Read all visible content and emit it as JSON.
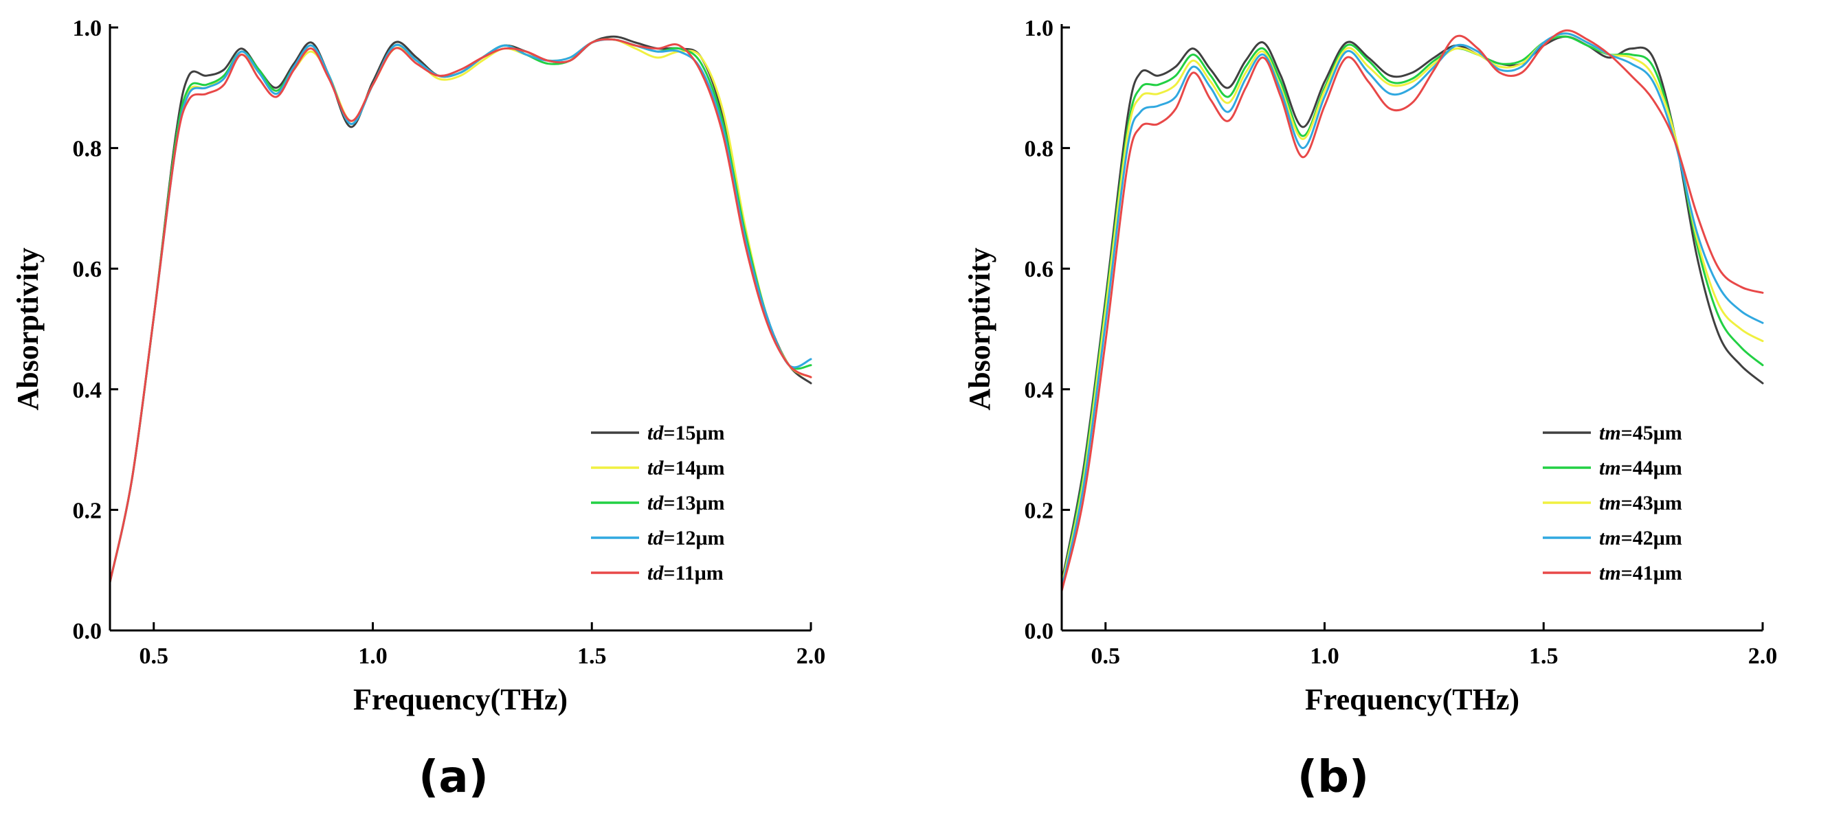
{
  "chart_data": [
    {
      "type": "line",
      "panel_label": "(a)",
      "xlabel": "Frequency(THz)",
      "ylabel": "Absorptivity",
      "xlim": [
        0.4,
        2.0
      ],
      "ylim": [
        0.0,
        1.0
      ],
      "xticks": [
        0.5,
        1.0,
        1.5,
        2.0
      ],
      "yticks": [
        0.0,
        0.2,
        0.4,
        0.6,
        0.8,
        1.0
      ],
      "xtick_labels": [
        "0.5",
        "1.0",
        "1.5",
        "2.0"
      ],
      "ytick_labels": [
        "0.0",
        "0.2",
        "0.4",
        "0.6",
        "0.8",
        "1.0"
      ],
      "legend_position": "bottom-right",
      "x": [
        0.4,
        0.45,
        0.5,
        0.55,
        0.58,
        0.62,
        0.66,
        0.7,
        0.74,
        0.78,
        0.82,
        0.86,
        0.9,
        0.95,
        1.0,
        1.05,
        1.1,
        1.15,
        1.2,
        1.25,
        1.3,
        1.35,
        1.4,
        1.45,
        1.5,
        1.55,
        1.6,
        1.65,
        1.7,
        1.75,
        1.8,
        1.85,
        1.9,
        1.95,
        2.0
      ],
      "series": [
        {
          "prefix": "td",
          "suffix": "=15μm",
          "color": "#404040",
          "values": [
            0.08,
            0.25,
            0.52,
            0.82,
            0.92,
            0.92,
            0.93,
            0.965,
            0.93,
            0.9,
            0.94,
            0.975,
            0.92,
            0.835,
            0.91,
            0.975,
            0.95,
            0.92,
            0.925,
            0.95,
            0.97,
            0.96,
            0.945,
            0.945,
            0.975,
            0.985,
            0.975,
            0.965,
            0.965,
            0.95,
            0.85,
            0.66,
            0.52,
            0.44,
            0.41
          ]
        },
        {
          "prefix": "td",
          "suffix": "=14μm",
          "color": "#f0f040",
          "values": [
            0.08,
            0.25,
            0.52,
            0.81,
            0.895,
            0.9,
            0.92,
            0.955,
            0.925,
            0.895,
            0.93,
            0.96,
            0.92,
            0.845,
            0.905,
            0.965,
            0.945,
            0.915,
            0.92,
            0.945,
            0.965,
            0.955,
            0.945,
            0.95,
            0.975,
            0.98,
            0.965,
            0.95,
            0.96,
            0.95,
            0.86,
            0.67,
            0.52,
            0.44,
            0.42
          ]
        },
        {
          "prefix": "td",
          "suffix": "=13μm",
          "color": "#22d044",
          "values": [
            0.08,
            0.25,
            0.52,
            0.81,
            0.9,
            0.905,
            0.92,
            0.96,
            0.93,
            0.895,
            0.935,
            0.97,
            0.92,
            0.84,
            0.905,
            0.97,
            0.945,
            0.92,
            0.925,
            0.95,
            0.97,
            0.955,
            0.94,
            0.945,
            0.975,
            0.98,
            0.97,
            0.96,
            0.965,
            0.94,
            0.84,
            0.66,
            0.52,
            0.44,
            0.44
          ]
        },
        {
          "prefix": "td",
          "suffix": "=12μm",
          "color": "#30a8e0",
          "values": [
            0.08,
            0.25,
            0.52,
            0.8,
            0.89,
            0.9,
            0.915,
            0.96,
            0.925,
            0.89,
            0.935,
            0.97,
            0.92,
            0.84,
            0.905,
            0.97,
            0.945,
            0.92,
            0.925,
            0.95,
            0.97,
            0.955,
            0.945,
            0.95,
            0.975,
            0.98,
            0.97,
            0.96,
            0.96,
            0.93,
            0.83,
            0.65,
            0.52,
            0.44,
            0.45
          ]
        },
        {
          "prefix": "td",
          "suffix": "=11μm",
          "color": "#e84848",
          "values": [
            0.08,
            0.25,
            0.52,
            0.8,
            0.88,
            0.89,
            0.905,
            0.955,
            0.915,
            0.885,
            0.93,
            0.965,
            0.915,
            0.845,
            0.905,
            0.965,
            0.94,
            0.92,
            0.93,
            0.95,
            0.965,
            0.96,
            0.945,
            0.945,
            0.975,
            0.98,
            0.97,
            0.965,
            0.97,
            0.925,
            0.82,
            0.64,
            0.51,
            0.44,
            0.42
          ]
        }
      ]
    },
    {
      "type": "line",
      "panel_label": "(b)",
      "xlabel": "Frequency(THz)",
      "ylabel": "Absorptivity",
      "xlim": [
        0.4,
        2.0
      ],
      "ylim": [
        0.0,
        1.0
      ],
      "xticks": [
        0.5,
        1.0,
        1.5,
        2.0
      ],
      "yticks": [
        0.0,
        0.2,
        0.4,
        0.6,
        0.8,
        1.0
      ],
      "xtick_labels": [
        "0.5",
        "1.0",
        "1.5",
        "2.0"
      ],
      "ytick_labels": [
        "0.0",
        "0.2",
        "0.4",
        "0.6",
        "0.8",
        "1.0"
      ],
      "legend_position": "bottom-right",
      "x": [
        0.4,
        0.45,
        0.5,
        0.55,
        0.58,
        0.62,
        0.66,
        0.7,
        0.74,
        0.78,
        0.82,
        0.86,
        0.9,
        0.95,
        1.0,
        1.05,
        1.1,
        1.15,
        1.2,
        1.25,
        1.3,
        1.35,
        1.4,
        1.45,
        1.5,
        1.55,
        1.6,
        1.65,
        1.7,
        1.75,
        1.8,
        1.85,
        1.9,
        1.95,
        2.0
      ],
      "series": [
        {
          "prefix": "tm",
          "suffix": "=45μm",
          "color": "#404040",
          "values": [
            0.08,
            0.27,
            0.55,
            0.85,
            0.925,
            0.92,
            0.935,
            0.965,
            0.93,
            0.9,
            0.945,
            0.975,
            0.92,
            0.835,
            0.91,
            0.975,
            0.95,
            0.92,
            0.925,
            0.95,
            0.97,
            0.955,
            0.94,
            0.94,
            0.97,
            0.985,
            0.97,
            0.95,
            0.965,
            0.95,
            0.82,
            0.62,
            0.49,
            0.44,
            0.41
          ]
        },
        {
          "prefix": "tm",
          "suffix": "=44μm",
          "color": "#22d044",
          "values": [
            0.075,
            0.26,
            0.54,
            0.83,
            0.9,
            0.905,
            0.92,
            0.955,
            0.92,
            0.885,
            0.935,
            0.965,
            0.91,
            0.82,
            0.9,
            0.97,
            0.945,
            0.91,
            0.915,
            0.945,
            0.965,
            0.955,
            0.94,
            0.945,
            0.975,
            0.985,
            0.97,
            0.955,
            0.955,
            0.935,
            0.82,
            0.64,
            0.52,
            0.47,
            0.44
          ]
        },
        {
          "prefix": "tm",
          "suffix": "=43μm",
          "color": "#f0f040",
          "values": [
            0.075,
            0.25,
            0.53,
            0.82,
            0.885,
            0.89,
            0.905,
            0.945,
            0.91,
            0.875,
            0.925,
            0.96,
            0.9,
            0.815,
            0.895,
            0.965,
            0.935,
            0.905,
            0.91,
            0.94,
            0.965,
            0.955,
            0.935,
            0.94,
            0.975,
            0.99,
            0.975,
            0.955,
            0.95,
            0.92,
            0.82,
            0.65,
            0.54,
            0.5,
            0.48
          ]
        },
        {
          "prefix": "tm",
          "suffix": "=42μm",
          "color": "#30a8e0",
          "values": [
            0.07,
            0.24,
            0.51,
            0.8,
            0.86,
            0.87,
            0.885,
            0.935,
            0.9,
            0.86,
            0.915,
            0.955,
            0.895,
            0.8,
            0.885,
            0.96,
            0.925,
            0.89,
            0.9,
            0.935,
            0.97,
            0.96,
            0.93,
            0.935,
            0.975,
            0.99,
            0.975,
            0.955,
            0.94,
            0.91,
            0.81,
            0.66,
            0.57,
            0.53,
            0.51
          ]
        },
        {
          "prefix": "tm",
          "suffix": "=41μm",
          "color": "#e84848",
          "values": [
            0.065,
            0.22,
            0.48,
            0.77,
            0.835,
            0.84,
            0.865,
            0.925,
            0.88,
            0.845,
            0.9,
            0.95,
            0.885,
            0.785,
            0.87,
            0.95,
            0.91,
            0.865,
            0.875,
            0.93,
            0.985,
            0.965,
            0.925,
            0.925,
            0.97,
            0.995,
            0.98,
            0.955,
            0.92,
            0.88,
            0.81,
            0.69,
            0.6,
            0.57,
            0.56
          ]
        }
      ]
    }
  ]
}
